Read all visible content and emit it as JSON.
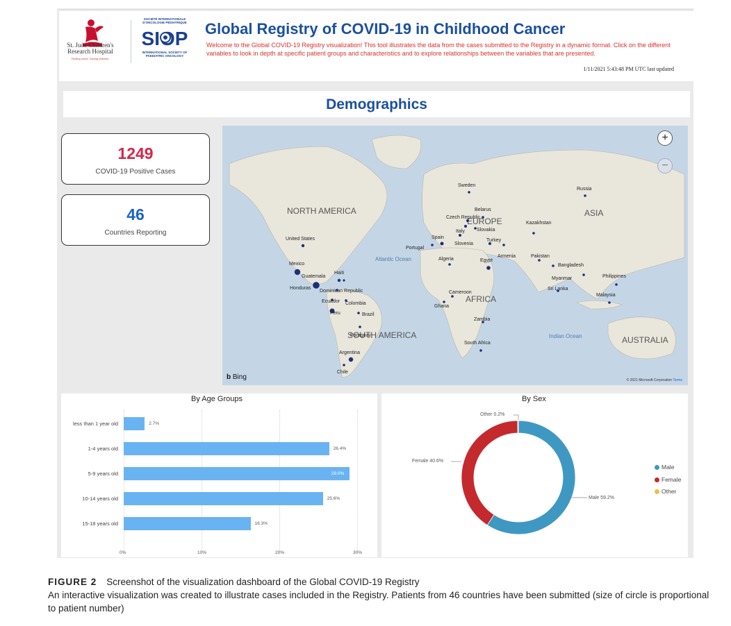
{
  "header": {
    "title": "Global Registry of COVID-19 in Childhood Cancer",
    "welcome": "Welcome to the Global COVID-19 Registry visualization! This tool illustrates the data from the cases submitted to the Registry in a dynamic format. Click on the different variables to look in depth at specific patient groups and characteristics and to explore relationships between the variables that are presented.",
    "last_updated": "1/11/2021 5:43:48 PM UTC last updated",
    "logo_stjude": {
      "line1": "St. Jude Children's",
      "line2": "Research Hospital",
      "tagline": "Finding cures. Saving children."
    },
    "logo_siop": {
      "top": "SOCIÉTÉ INTERNATIONALE D'ONCOLOGIE PÉDIATRIQUE",
      "word": "SIOP",
      "bottom": "INTERNATIONAL SOCIETY OF PAEDIATRIC ONCOLOGY"
    }
  },
  "section": {
    "title": "Demographics"
  },
  "cards": [
    {
      "value": "1249",
      "label": "COVID-19 Positive Cases",
      "color": "#d6254a"
    },
    {
      "value": "46",
      "label": "Countries Reporting",
      "color": "#1b62c8"
    }
  ],
  "map": {
    "provider": "Bing",
    "copyright": "© 2021 Microsoft Corporation",
    "terms": "Terms",
    "zoom_in_icon": "plus-icon",
    "zoom_out_icon": "minus-icon",
    "region_labels": [
      "NORTH AMERICA",
      "EUROPE",
      "ASIA",
      "AFRICA",
      "SOUTH AMERICA",
      "AUSTRALIA"
    ],
    "ocean_labels": [
      "Atlantic Ocean",
      "Indian Ocean"
    ],
    "countries": [
      "Sweden",
      "Russia",
      "Belarus",
      "Czech Republic",
      "Kazakhstan",
      "Italy",
      "Slovakia",
      "Spain",
      "Turkey",
      "Slovenia",
      "Portugal",
      "United States",
      "Armenia",
      "Pakistan",
      "Algeria",
      "Egypt",
      "Bangladesh",
      "Mexico",
      "Guatemala",
      "Haiti",
      "Myanmar",
      "Philippines",
      "Honduras",
      "Dominican Republic",
      "Sri Lanka",
      "Malaysia",
      "Cameroon",
      "Ecuador",
      "Colombia",
      "Ghana",
      "Peru",
      "Brazil",
      "Zambia",
      "Paraguay",
      "South Africa",
      "Argentina",
      "Chile"
    ]
  },
  "age_chart": {
    "title": "By Age Groups",
    "chart_data": {
      "type": "bar",
      "orientation": "horizontal",
      "categories": [
        "less than 1 year old",
        "1-4 years old",
        "5-9 years old",
        "10-14 years old",
        "15-18 years old"
      ],
      "values": [
        2.7,
        26.4,
        29.0,
        25.6,
        16.3
      ],
      "value_labels": [
        "2.7%",
        "26.4%",
        "29.0%",
        "25.6%",
        "16.3%"
      ],
      "ticks": [
        "0%",
        "10%",
        "20%",
        "30%"
      ],
      "xlim": [
        0,
        30
      ],
      "color": "#6ab3f3"
    }
  },
  "sex_chart": {
    "title": "By Sex",
    "chart_data": {
      "type": "donut",
      "categories": [
        "Male",
        "Female",
        "Other"
      ],
      "values": [
        59.2,
        40.6,
        0.2
      ],
      "data_labels": [
        "Male 59.2%",
        "Female 40.6%",
        "Other 0.2%"
      ],
      "colors": [
        "#3f98c2",
        "#c4292e",
        "#e7c14a"
      ],
      "legend_position": "right"
    }
  },
  "caption": {
    "label": "FIGURE 2",
    "title": "Screenshot of the visualization dashboard of the Global COVID-19 Registry",
    "body": "An interactive visualization was created to illustrate cases included in the Registry. Patients from 46 countries have been submitted (size of circle is proportional to patient number)"
  }
}
